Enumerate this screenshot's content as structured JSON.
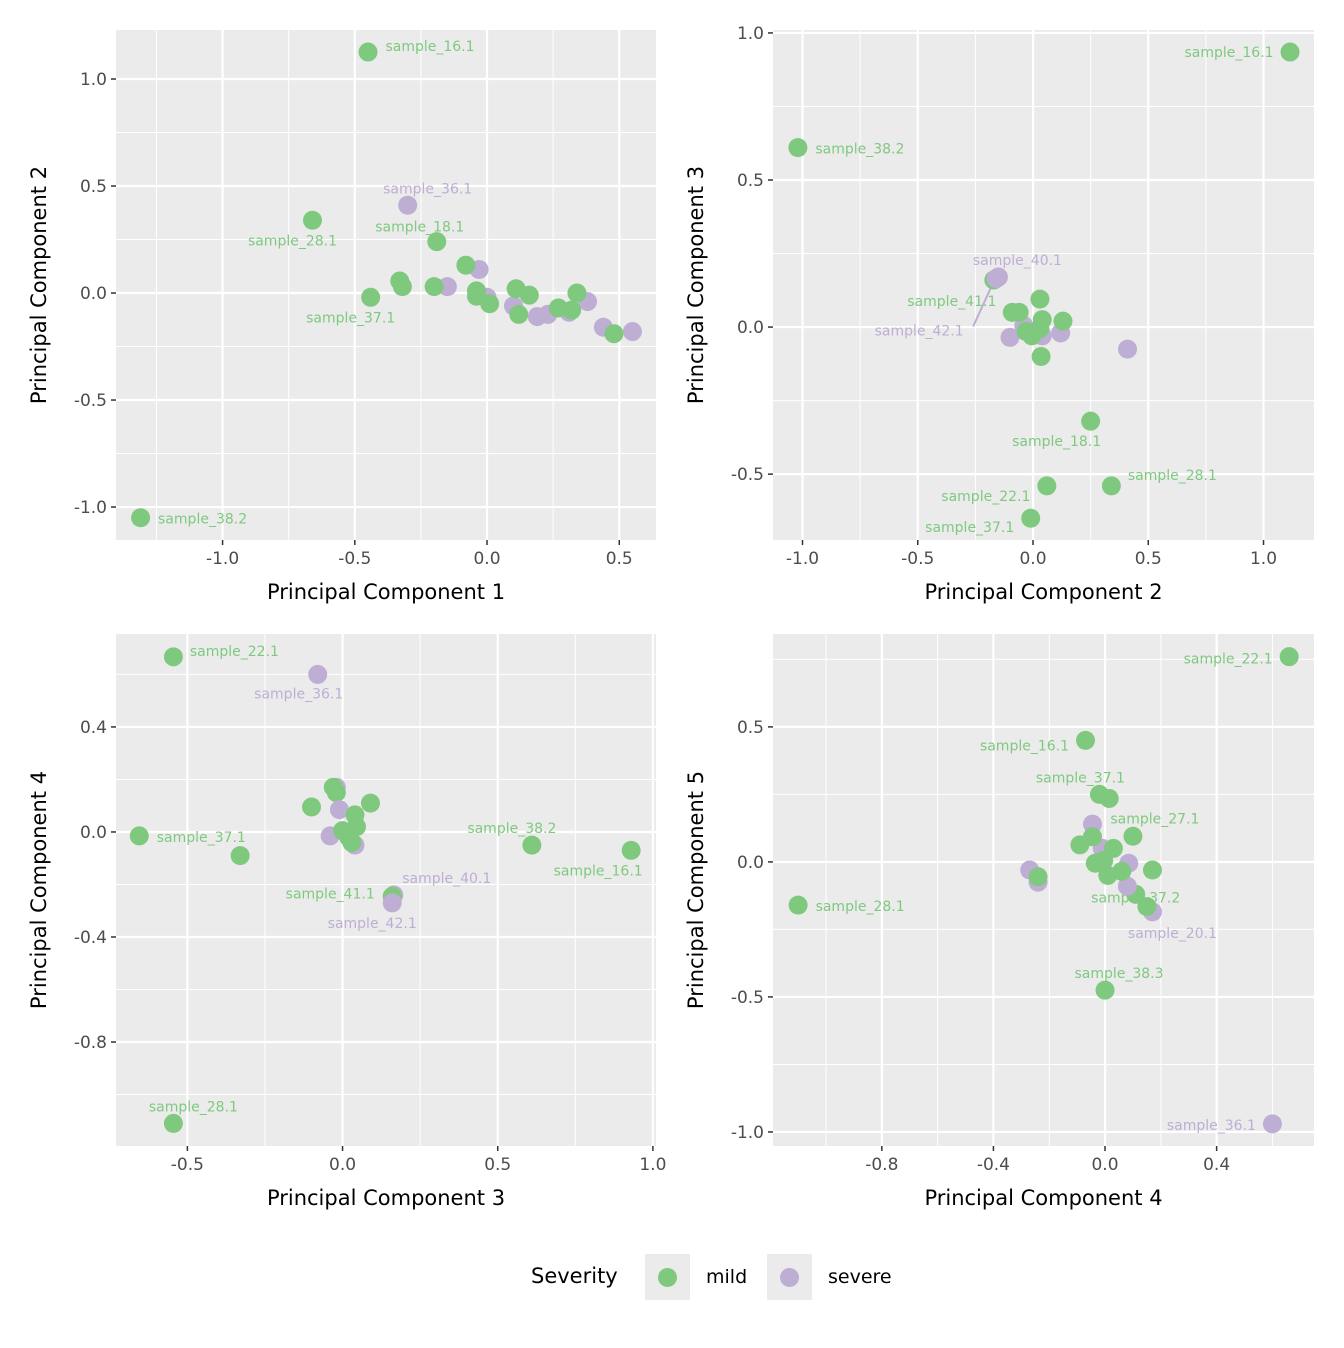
{
  "chart_data": [
    {
      "type": "scatter",
      "xlabel": "Principal Component 1",
      "ylabel": "Principal Component 2",
      "xlim": [
        -1.403,
        0.639
      ],
      "ylim": [
        -1.154,
        1.229
      ],
      "xticks": [
        -1.0,
        -0.5,
        0.0,
        0.5
      ],
      "xtick_labels": [
        "-1.0",
        "-0.5",
        "0.0",
        "0.5"
      ],
      "yticks": [
        -1.0,
        -0.5,
        0.0,
        0.5,
        1.0
      ],
      "ytick_labels": [
        "-1.0",
        "-0.5",
        "0.0",
        "0.5",
        "1.0"
      ],
      "grid": true,
      "points": [
        {
          "x": -0.45,
          "y": 1.126,
          "severity": "mild",
          "label": "sample_16.1"
        },
        {
          "x": -0.3,
          "y": 0.41,
          "severity": "severe",
          "label": "sample_36.1"
        },
        {
          "x": -0.19,
          "y": 0.24,
          "severity": "mild",
          "label": "sample_18.1"
        },
        {
          "x": -0.66,
          "y": 0.34,
          "severity": "mild",
          "label": "sample_28.1"
        },
        {
          "x": -0.44,
          "y": -0.02,
          "severity": "mild",
          "label": "sample_37.1"
        },
        {
          "x": -1.31,
          "y": -1.05,
          "severity": "mild",
          "label": "sample_38.2"
        },
        {
          "x": -0.33,
          "y": 0.056,
          "severity": "mild"
        },
        {
          "x": -0.32,
          "y": 0.03,
          "severity": "mild"
        },
        {
          "x": -0.15,
          "y": 0.03,
          "severity": "severe"
        },
        {
          "x": -0.2,
          "y": 0.03,
          "severity": "mild"
        },
        {
          "x": -0.03,
          "y": 0.11,
          "severity": "severe"
        },
        {
          "x": -0.08,
          "y": 0.13,
          "severity": "mild"
        },
        {
          "x": 0.0,
          "y": -0.02,
          "severity": "severe"
        },
        {
          "x": -0.04,
          "y": 0.01,
          "severity": "mild"
        },
        {
          "x": -0.04,
          "y": -0.015,
          "severity": "mild"
        },
        {
          "x": 0.01,
          "y": -0.05,
          "severity": "mild"
        },
        {
          "x": 0.1,
          "y": -0.06,
          "severity": "severe"
        },
        {
          "x": 0.11,
          "y": 0.02,
          "severity": "mild"
        },
        {
          "x": 0.16,
          "y": -0.01,
          "severity": "mild"
        },
        {
          "x": 0.12,
          "y": -0.1,
          "severity": "mild"
        },
        {
          "x": 0.19,
          "y": -0.11,
          "severity": "severe"
        },
        {
          "x": 0.23,
          "y": -0.1,
          "severity": "severe"
        },
        {
          "x": 0.38,
          "y": -0.04,
          "severity": "severe"
        },
        {
          "x": 0.31,
          "y": -0.09,
          "severity": "severe"
        },
        {
          "x": 0.27,
          "y": -0.07,
          "severity": "mild"
        },
        {
          "x": 0.34,
          "y": 0.0,
          "severity": "mild"
        },
        {
          "x": 0.32,
          "y": -0.08,
          "severity": "mild"
        },
        {
          "x": 0.44,
          "y": -0.16,
          "severity": "severe"
        },
        {
          "x": 0.55,
          "y": -0.18,
          "severity": "severe"
        },
        {
          "x": 0.48,
          "y": -0.19,
          "severity": "mild"
        }
      ]
    },
    {
      "type": "scatter",
      "xlabel": "Principal Component 2",
      "ylabel": "Principal Component 3",
      "xlim": [
        -1.128,
        1.219
      ],
      "ylim": [
        -0.724,
        1.01
      ],
      "xticks": [
        -1.0,
        -0.5,
        0.0,
        0.5,
        1.0
      ],
      "xtick_labels": [
        "-1.0",
        "-0.5",
        "0.0",
        "0.5",
        "1.0"
      ],
      "yticks": [
        -0.5,
        0.0,
        0.5,
        1.0
      ],
      "ytick_labels": [
        "-0.5",
        "0.0",
        "0.5",
        "1.0"
      ],
      "grid": true,
      "points": [
        {
          "x": 1.115,
          "y": 0.935,
          "severity": "mild",
          "label": "sample_16.1"
        },
        {
          "x": -1.02,
          "y": 0.61,
          "severity": "mild",
          "label": "sample_38.2"
        },
        {
          "x": -0.17,
          "y": 0.16,
          "severity": "mild",
          "label": "sample_41.1"
        },
        {
          "x": -0.16,
          "y": 0.165,
          "severity": "severe",
          "label": "sample_42.1"
        },
        {
          "x": -0.15,
          "y": 0.17,
          "severity": "severe",
          "label": "sample_40.1"
        },
        {
          "x": 0.25,
          "y": -0.32,
          "severity": "mild",
          "label": "sample_18.1"
        },
        {
          "x": 0.34,
          "y": -0.54,
          "severity": "mild",
          "label": "sample_28.1"
        },
        {
          "x": 0.06,
          "y": -0.54,
          "severity": "mild",
          "label": "sample_22.1"
        },
        {
          "x": -0.01,
          "y": -0.65,
          "severity": "mild",
          "label": "sample_37.1"
        },
        {
          "x": -0.1,
          "y": -0.035,
          "severity": "severe"
        },
        {
          "x": 0.12,
          "y": -0.02,
          "severity": "severe"
        },
        {
          "x": -0.04,
          "y": 0.005,
          "severity": "severe"
        },
        {
          "x": 0.04,
          "y": -0.03,
          "severity": "severe"
        },
        {
          "x": 0.41,
          "y": -0.075,
          "severity": "severe"
        },
        {
          "x": 0.03,
          "y": 0.095,
          "severity": "mild"
        },
        {
          "x": -0.09,
          "y": 0.05,
          "severity": "mild"
        },
        {
          "x": -0.06,
          "y": 0.05,
          "severity": "mild"
        },
        {
          "x": 0.13,
          "y": 0.02,
          "severity": "mild"
        },
        {
          "x": 0.04,
          "y": 0.025,
          "severity": "mild"
        },
        {
          "x": -0.03,
          "y": -0.015,
          "severity": "mild"
        },
        {
          "x": -0.005,
          "y": -0.03,
          "severity": "mild"
        },
        {
          "x": 0.03,
          "y": -0.005,
          "severity": "mild"
        },
        {
          "x": 0.035,
          "y": -0.1,
          "severity": "mild"
        }
      ]
    },
    {
      "type": "scatter",
      "xlabel": "Principal Component 3",
      "ylabel": "Principal Component 4",
      "xlim": [
        -0.73,
        1.01
      ],
      "ylim": [
        -1.196,
        0.754
      ],
      "xticks": [
        -0.5,
        0.0,
        0.5,
        1.0
      ],
      "xtick_labels": [
        "-0.5",
        "0.0",
        "0.5",
        "1.0"
      ],
      "yticks": [
        -0.8,
        -0.4,
        0.0,
        0.4
      ],
      "ytick_labels": [
        "-0.8",
        "-0.4",
        "0.0",
        "0.4"
      ],
      "grid": true,
      "points": [
        {
          "x": -0.545,
          "y": 0.667,
          "severity": "mild",
          "label": "sample_22.1"
        },
        {
          "x": -0.08,
          "y": 0.6,
          "severity": "severe",
          "label": "sample_36.1"
        },
        {
          "x": -0.655,
          "y": -0.015,
          "severity": "mild",
          "label": "sample_37.1"
        },
        {
          "x": 0.61,
          "y": -0.05,
          "severity": "mild",
          "label": "sample_38.2"
        },
        {
          "x": 0.93,
          "y": -0.07,
          "severity": "mild",
          "label": "sample_16.1"
        },
        {
          "x": 0.165,
          "y": -0.24,
          "severity": "severe",
          "label": "sample_40.1"
        },
        {
          "x": 0.16,
          "y": -0.245,
          "severity": "mild",
          "label": "sample_41.1"
        },
        {
          "x": 0.16,
          "y": -0.27,
          "severity": "severe",
          "label": "sample_42.1"
        },
        {
          "x": -0.545,
          "y": -1.11,
          "severity": "mild",
          "label": "sample_28.1"
        },
        {
          "x": -0.33,
          "y": -0.09,
          "severity": "mild"
        },
        {
          "x": -0.02,
          "y": 0.17,
          "severity": "severe"
        },
        {
          "x": -0.03,
          "y": 0.17,
          "severity": "mild"
        },
        {
          "x": -0.02,
          "y": 0.15,
          "severity": "mild"
        },
        {
          "x": -0.1,
          "y": 0.095,
          "severity": "mild"
        },
        {
          "x": 0.09,
          "y": 0.11,
          "severity": "mild"
        },
        {
          "x": -0.01,
          "y": 0.085,
          "severity": "severe"
        },
        {
          "x": -0.04,
          "y": -0.015,
          "severity": "severe"
        },
        {
          "x": 0.04,
          "y": -0.05,
          "severity": "severe"
        },
        {
          "x": 0.04,
          "y": 0.065,
          "severity": "mild"
        },
        {
          "x": 0.0,
          "y": 0.005,
          "severity": "mild"
        },
        {
          "x": 0.02,
          "y": -0.02,
          "severity": "mild"
        },
        {
          "x": 0.045,
          "y": 0.02,
          "severity": "mild"
        },
        {
          "x": 0.03,
          "y": -0.04,
          "severity": "mild"
        }
      ]
    },
    {
      "type": "scatter",
      "xlabel": "Principal Component 4",
      "ylabel": "Principal Component 5",
      "xlim": [
        -1.19,
        0.749
      ],
      "ylim": [
        -1.052,
        0.844
      ],
      "xticks": [
        -0.8,
        -0.4,
        0.0,
        0.4
      ],
      "xtick_labels": [
        "-0.8",
        "-0.4",
        "0.0",
        "0.4"
      ],
      "yticks": [
        -1.0,
        -0.5,
        0.0,
        0.5
      ],
      "ytick_labels": [
        "-1.0",
        "-0.5",
        "0.0",
        "0.5"
      ],
      "grid": true,
      "points": [
        {
          "x": 0.66,
          "y": 0.76,
          "severity": "mild",
          "label": "sample_22.1"
        },
        {
          "x": -0.07,
          "y": 0.45,
          "severity": "mild",
          "label": "sample_16.1"
        },
        {
          "x": -0.02,
          "y": 0.25,
          "severity": "mild",
          "label": "sample_37.1"
        },
        {
          "x": 0.1,
          "y": 0.095,
          "severity": "mild",
          "label": "sample_27.1"
        },
        {
          "x": -1.1,
          "y": -0.16,
          "severity": "mild",
          "label": "sample_28.1"
        },
        {
          "x": 0.11,
          "y": -0.12,
          "severity": "mild",
          "label": "sample_37.2"
        },
        {
          "x": 0.17,
          "y": -0.185,
          "severity": "severe",
          "label": "sample_20.1"
        },
        {
          "x": 0.0,
          "y": -0.475,
          "severity": "mild",
          "label": "sample_38.3"
        },
        {
          "x": 0.6,
          "y": -0.97,
          "severity": "severe",
          "label": "sample_36.1"
        },
        {
          "x": 0.015,
          "y": 0.235,
          "severity": "mild"
        },
        {
          "x": -0.045,
          "y": 0.14,
          "severity": "severe"
        },
        {
          "x": -0.01,
          "y": 0.05,
          "severity": "severe"
        },
        {
          "x": 0.085,
          "y": -0.005,
          "severity": "severe"
        },
        {
          "x": 0.08,
          "y": -0.09,
          "severity": "severe"
        },
        {
          "x": -0.27,
          "y": -0.03,
          "severity": "severe"
        },
        {
          "x": -0.24,
          "y": -0.075,
          "severity": "severe"
        },
        {
          "x": -0.24,
          "y": -0.055,
          "severity": "mild"
        },
        {
          "x": -0.09,
          "y": 0.063,
          "severity": "mild"
        },
        {
          "x": -0.045,
          "y": 0.093,
          "severity": "mild"
        },
        {
          "x": 0.03,
          "y": 0.05,
          "severity": "mild"
        },
        {
          "x": -0.035,
          "y": -0.005,
          "severity": "mild"
        },
        {
          "x": -0.005,
          "y": 0.005,
          "severity": "mild"
        },
        {
          "x": 0.17,
          "y": -0.03,
          "severity": "mild"
        },
        {
          "x": 0.01,
          "y": -0.05,
          "severity": "mild"
        },
        {
          "x": 0.06,
          "y": -0.035,
          "severity": "mild"
        },
        {
          "x": 0.15,
          "y": -0.165,
          "severity": "mild"
        }
      ]
    }
  ],
  "legend": {
    "title": "Severity",
    "position": "bottom",
    "items": [
      {
        "key": "mild",
        "label": "mild",
        "color": "#7FC97F"
      },
      {
        "key": "severe",
        "label": "severe",
        "color": "#BEAED4"
      }
    ]
  },
  "colors": {
    "mild": "#7FC97F",
    "severe": "#BEAED4",
    "panel_background": "#EBEBEB",
    "grid": "#FFFFFF"
  }
}
